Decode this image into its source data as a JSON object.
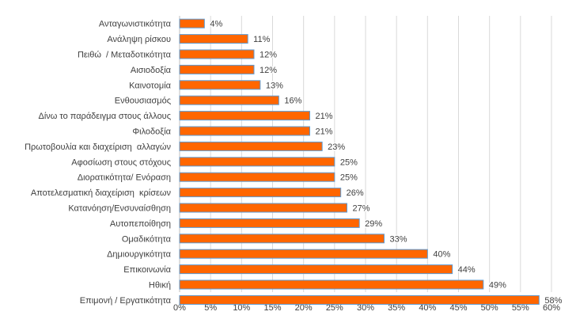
{
  "chart_data": {
    "type": "bar",
    "orientation": "horizontal",
    "categories": [
      "Ανταγωνιστικότητα",
      "Ανάληψη ρίσκου",
      "Πειθώ  / Μεταδοτικότητα",
      "Αισιοδοξία",
      "Καινοτομία",
      "Ενθουσιασμός",
      "Δίνω το παράδειγμα στους άλλους",
      "Φιλοδοξία",
      "Πρωτοβουλία και διαχείριση  αλλαγών",
      "Αφοσίωση στους στόχους",
      "Διορατικότητα/ Ενόραση",
      "Αποτελεσματική διαχείριση  κρίσεων",
      "Κατανόηση/Ενσυναίσθηση",
      "Αυτοπεποίθηση",
      "Ομαδικότητα",
      "Δημιουργικότητα",
      "Επικοινωνία",
      "Ηθική",
      "Επιμονή / Εργατικότητα"
    ],
    "values": [
      4,
      11,
      12,
      12,
      13,
      16,
      21,
      21,
      23,
      25,
      25,
      26,
      27,
      29,
      33,
      40,
      44,
      49,
      58
    ],
    "data_labels": [
      "4%",
      "11%",
      "12%",
      "12%",
      "13%",
      "16%",
      "21%",
      "21%",
      "23%",
      "25%",
      "25%",
      "26%",
      "27%",
      "29%",
      "33%",
      "40%",
      "44%",
      "49%",
      "58%"
    ],
    "xlim": [
      0,
      60
    ],
    "xticks": [
      "0%",
      "5%",
      "10%",
      "15%",
      "20%",
      "25%",
      "30%",
      "35%",
      "40%",
      "45%",
      "50%",
      "55%",
      "60%"
    ],
    "grid": true,
    "bar_color": "#FF6600",
    "bar_edge_color": "#5B9BD5",
    "title": "",
    "xlabel": "",
    "ylabel": ""
  }
}
